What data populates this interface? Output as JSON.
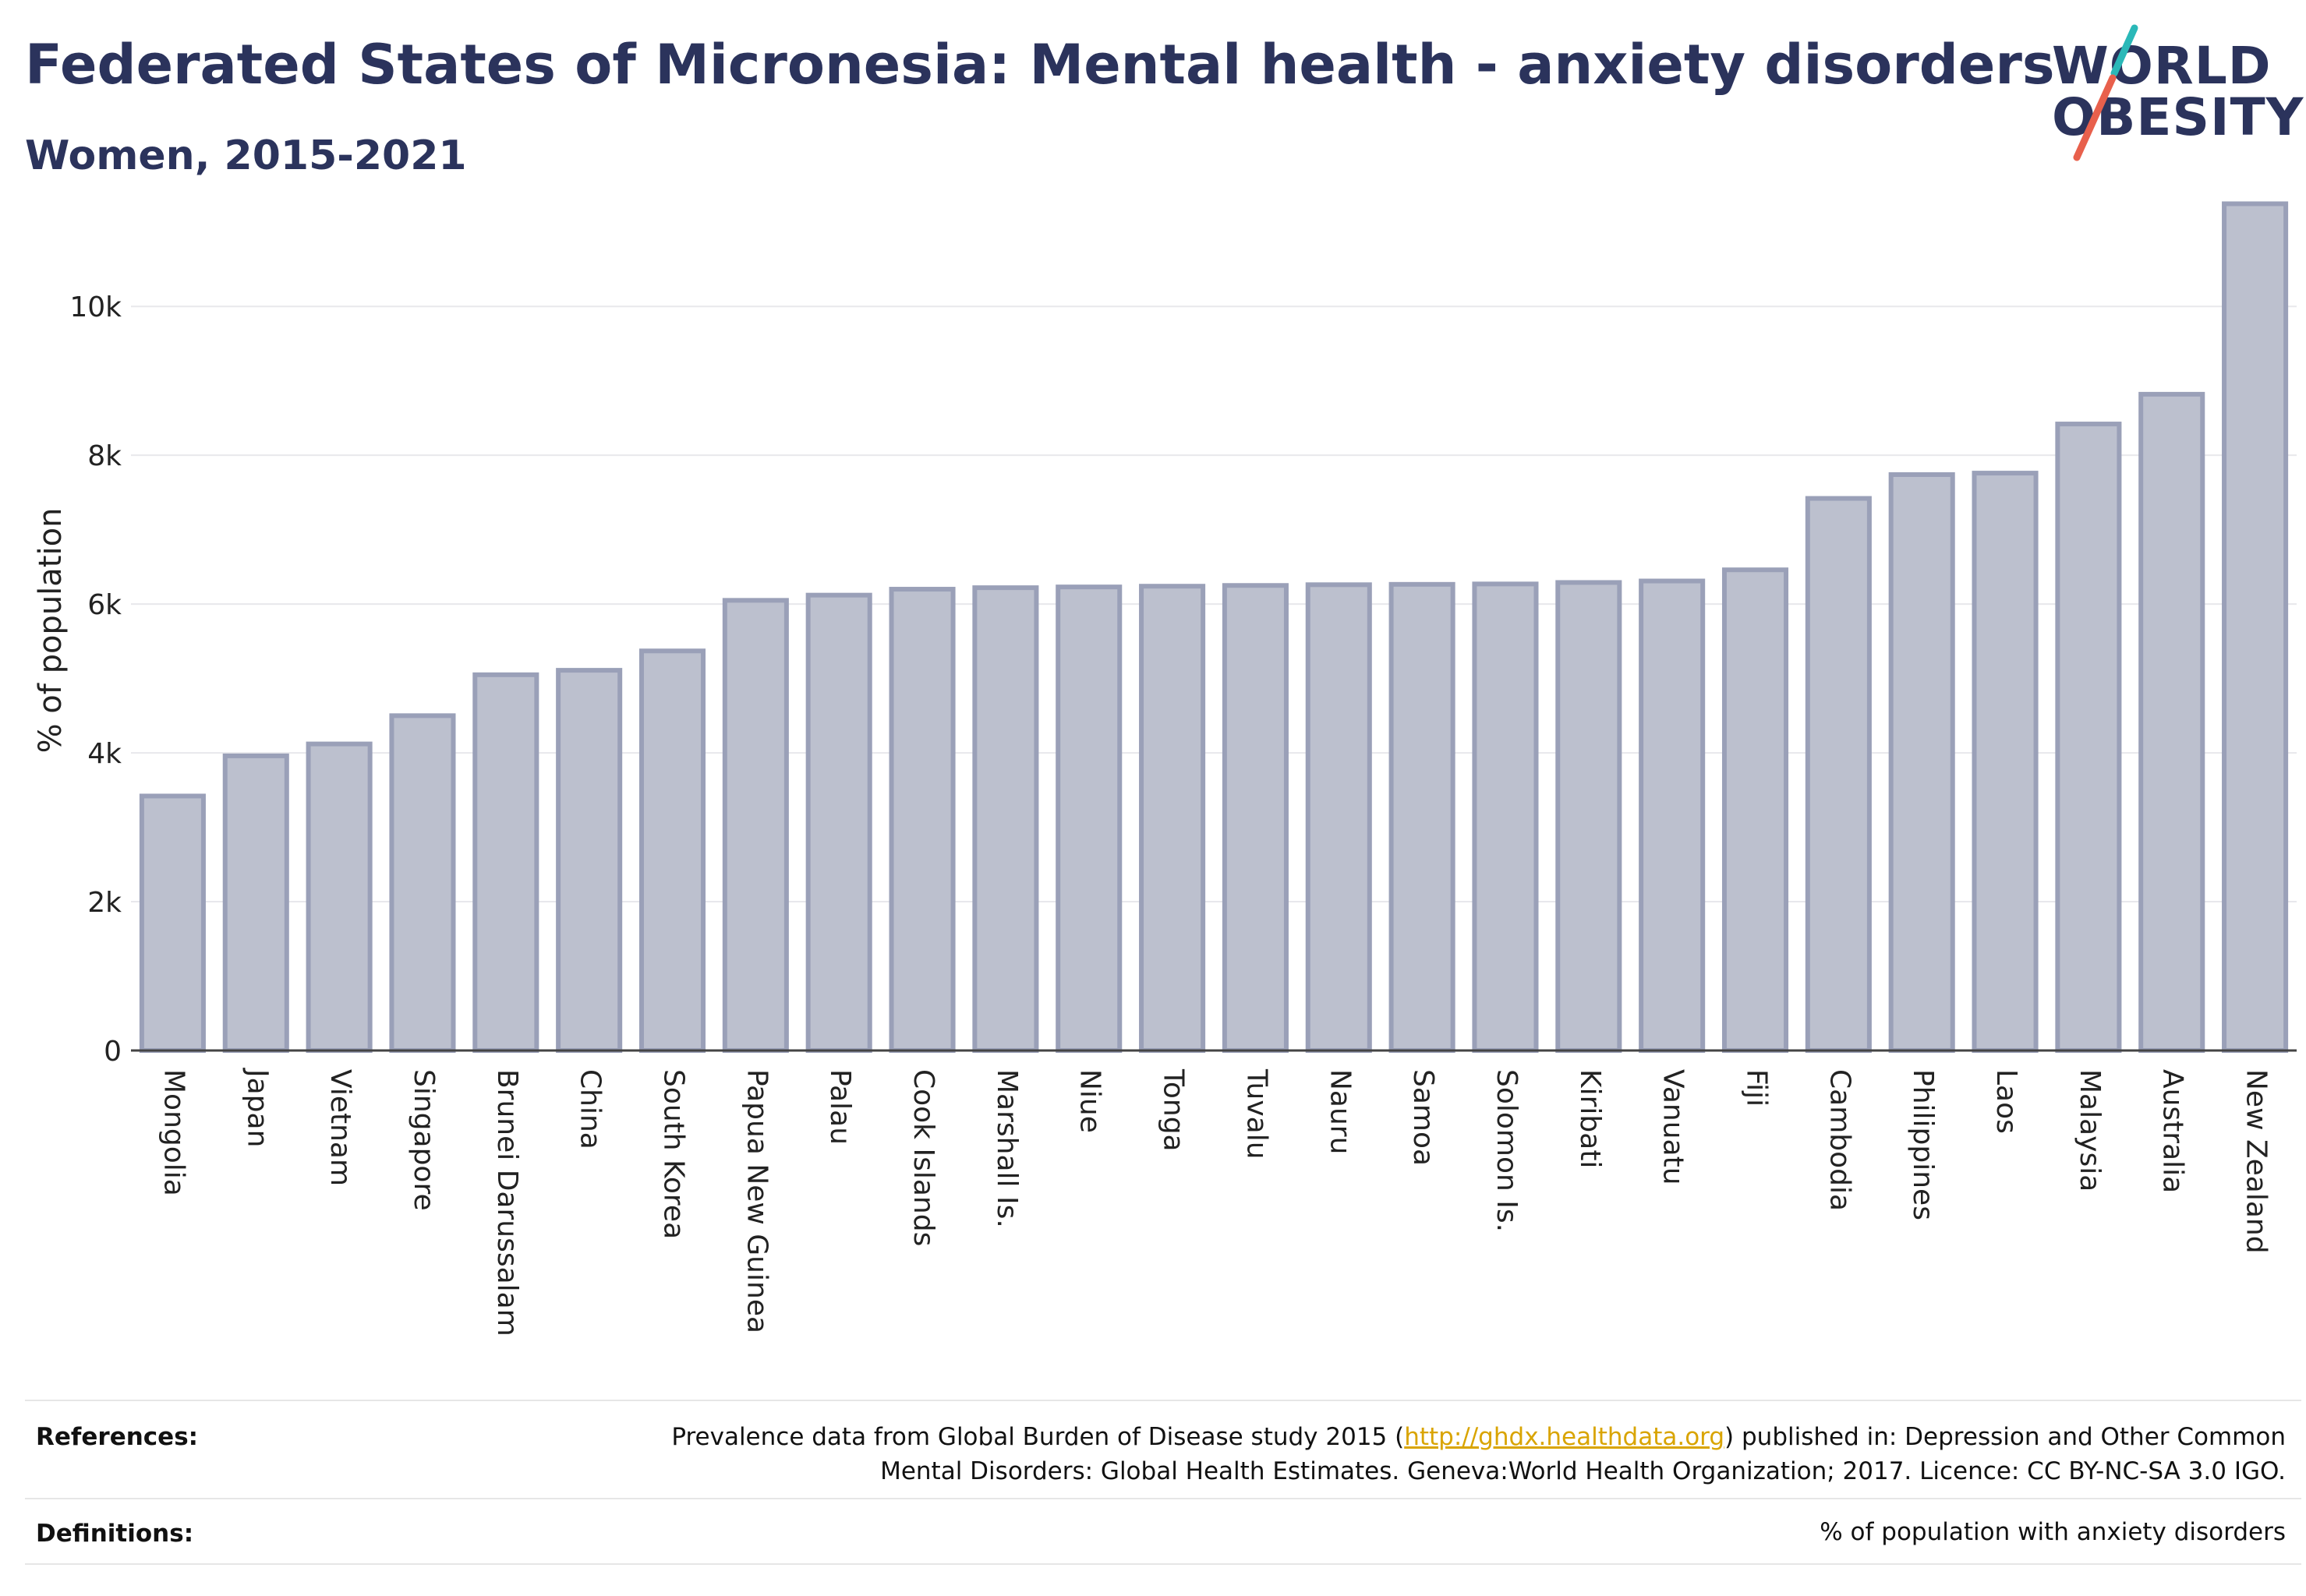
{
  "header": {
    "title": "Federated States of Micronesia: Mental health - anxiety disorders",
    "subtitle": "Women, 2015-2021"
  },
  "logo": {
    "line1": "WORLD",
    "line2": "OBESITY",
    "colors": {
      "text": "#2b335c",
      "slash_top": "#2ab8b8",
      "slash_bottom": "#e8604c"
    }
  },
  "chart_data": {
    "type": "bar",
    "ylabel": "% of population",
    "xlabel": "",
    "ylim": [
      0,
      11500
    ],
    "yticks": [
      0,
      2000,
      4000,
      6000,
      8000,
      10000
    ],
    "ytick_labels": [
      "0",
      "2k",
      "4k",
      "6k",
      "8k",
      "10k"
    ],
    "grid": true,
    "categories": [
      "Mongolia",
      "Japan",
      "Vietnam",
      "Singapore",
      "Brunei Darussalam",
      "China",
      "South Korea",
      "Papua New Guinea",
      "Palau",
      "Cook Islands",
      "Marshall Is.",
      "Niue",
      "Tonga",
      "Tuvalu",
      "Nauru",
      "Samoa",
      "Solomon Is.",
      "Kiribati",
      "Vanuatu",
      "Fiji",
      "Cambodia",
      "Philippines",
      "Laos",
      "Malaysia",
      "Australia",
      "New Zealand"
    ],
    "values": [
      3420,
      3960,
      4120,
      4500,
      5050,
      5110,
      5370,
      6050,
      6120,
      6200,
      6220,
      6230,
      6240,
      6250,
      6260,
      6265,
      6270,
      6290,
      6310,
      6460,
      7420,
      7740,
      7760,
      8420,
      8820,
      11380
    ],
    "bar_fill": "#bcc0ce",
    "bar_stroke": "#9aa0b8",
    "axis_color": "#444444"
  },
  "footer": {
    "references_label": "References:",
    "references_line1_pre": "Prevalence data from Global Burden of Disease study 2015 (",
    "references_link": "http://ghdx.healthdata.org",
    "references_line1_post": ") published in: Depression and Other Common",
    "references_line2": "Mental Disorders: Global Health Estimates. Geneva:World Health Organization; 2017. Licence: CC BY-NC-SA 3.0 IGO.",
    "definitions_label": "Definitions:",
    "definitions_text": "% of population with anxiety disorders"
  }
}
